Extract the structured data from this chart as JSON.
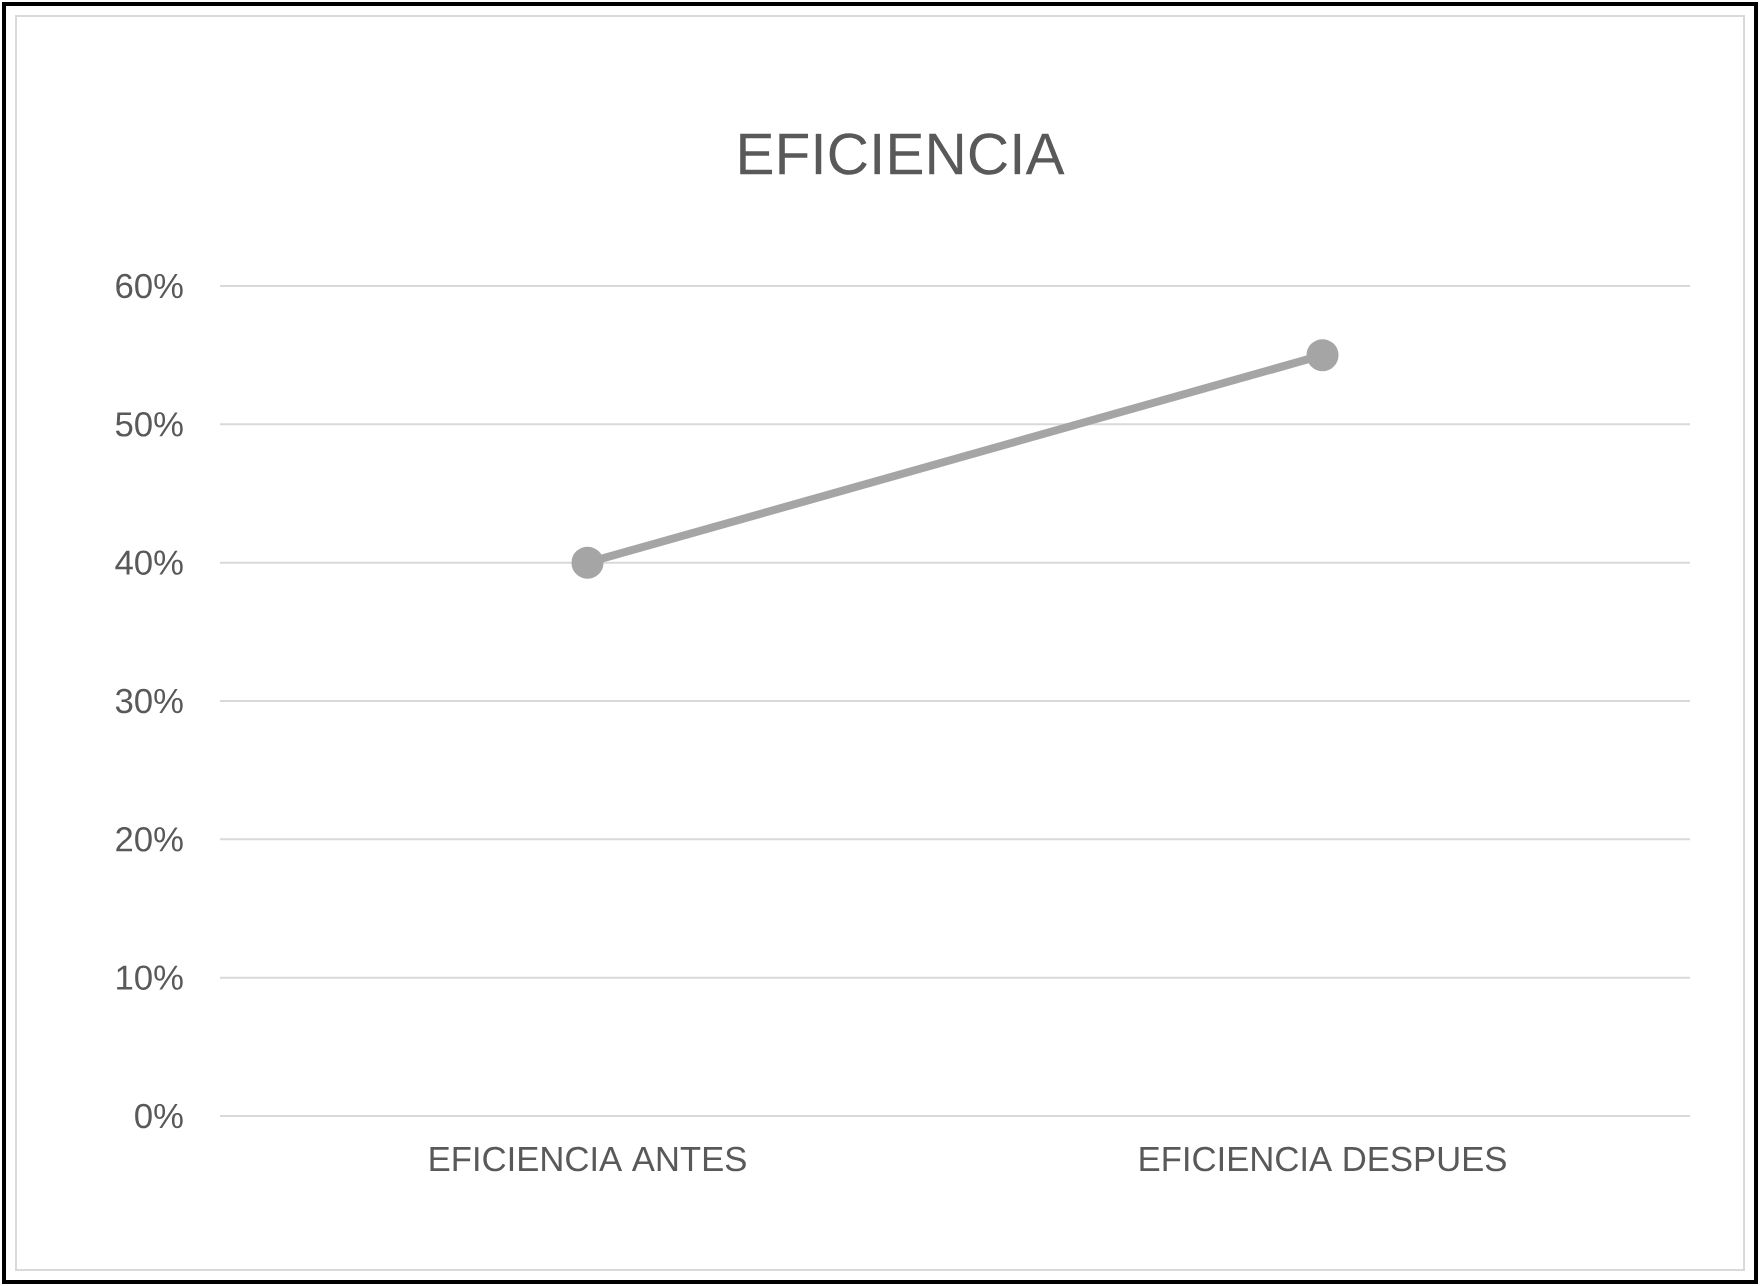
{
  "chart_data": {
    "type": "line",
    "title": "EFICIENCIA",
    "categories": [
      "EFICIENCIA ANTES",
      "EFICIENCIA DESPUES"
    ],
    "series": [
      {
        "color": "#a5a5a5",
        "values": [
          40,
          55
        ]
      }
    ],
    "ylim": [
      0,
      60
    ],
    "yticks": [
      {
        "value": 0,
        "label": "0%"
      },
      {
        "value": 10,
        "label": "10%"
      },
      {
        "value": 20,
        "label": "20%"
      },
      {
        "value": 30,
        "label": "30%"
      },
      {
        "value": 40,
        "label": "40%"
      },
      {
        "value": 50,
        "label": "50%"
      },
      {
        "value": 60,
        "label": "60%"
      }
    ],
    "grid": "y",
    "marker": "circle",
    "line_style": "solid"
  }
}
